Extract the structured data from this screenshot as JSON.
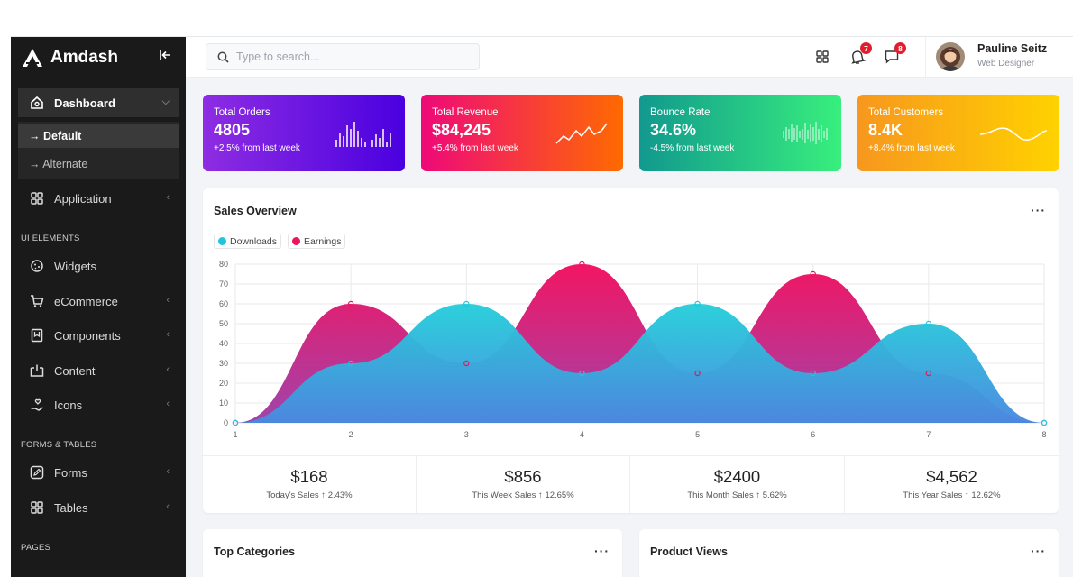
{
  "app": {
    "name": "Amdash"
  },
  "sidebar": {
    "collapse_icon": "collapse-left-icon",
    "dashboard": {
      "label": "Dashboard",
      "icon": "home-icon"
    },
    "dashboard_sub": [
      {
        "label": "→ Default"
      },
      {
        "label": "→ Alternate"
      }
    ],
    "application": {
      "label": "Application",
      "icon": "grid-icon"
    },
    "sections": {
      "ui": "UI ELEMENTS",
      "forms": "FORMS & TABLES",
      "pages": "PAGES"
    },
    "ui_items": [
      {
        "label": "Widgets",
        "icon": "cookie-icon"
      },
      {
        "label": "eCommerce",
        "icon": "cart-icon"
      },
      {
        "label": "Components",
        "icon": "bookmark-icon"
      },
      {
        "label": "Content",
        "icon": "inbox-icon"
      },
      {
        "label": "Icons",
        "icon": "hand-heart-icon"
      }
    ],
    "form_items": [
      {
        "label": "Forms",
        "icon": "edit-icon"
      },
      {
        "label": "Tables",
        "icon": "grid-icon"
      }
    ]
  },
  "topbar": {
    "search_placeholder": "Type to search...",
    "notifications_count": "7",
    "messages_count": "8",
    "user": {
      "name": "Pauline Seitz",
      "role": "Web Designer"
    }
  },
  "stats": [
    {
      "label": "Total Orders",
      "value": "4805",
      "change": "+2.5% from last week",
      "gradient": [
        "#8e2de2",
        "#4a00e0"
      ]
    },
    {
      "label": "Total Revenue",
      "value": "$84,245",
      "change": "+5.4% from last week",
      "gradient": [
        "#ee0979",
        "#ff6a00"
      ]
    },
    {
      "label": "Bounce Rate",
      "value": "34.6%",
      "change": "-4.5% from last week",
      "gradient": [
        "#11998e",
        "#38ef7d"
      ]
    },
    {
      "label": "Total Customers",
      "value": "8.4K",
      "change": "+8.4% from last week",
      "gradient": [
        "#f7971e",
        "#ffd200"
      ]
    }
  ],
  "sales_overview": {
    "title": "Sales Overview",
    "legend": [
      "Downloads",
      "Earnings"
    ],
    "summary": [
      {
        "value": "$168",
        "label": "Today's Sales ↑ 2.43%"
      },
      {
        "value": "$856",
        "label": "This Week Sales ↑ 12.65%"
      },
      {
        "value": "$2400",
        "label": "This Month Sales ↑ 5.62%"
      },
      {
        "value": "$4,562",
        "label": "This Year Sales ↑ 12.62%"
      }
    ]
  },
  "bottom_cards": {
    "left_title": "Top Categories",
    "right_title": "Product Views"
  },
  "chart_data": {
    "type": "area",
    "x": [
      1,
      2,
      3,
      4,
      5,
      6,
      7,
      8
    ],
    "series": [
      {
        "name": "Earnings",
        "values": [
          0,
          60,
          30,
          80,
          25,
          75,
          25,
          0
        ],
        "color": "#e8175d"
      },
      {
        "name": "Downloads",
        "values": [
          0,
          30,
          60,
          25,
          60,
          25,
          50,
          0
        ],
        "color": "#22c5dc"
      }
    ],
    "ylim": [
      0,
      80
    ],
    "yticks": [
      0,
      10,
      20,
      30,
      40,
      50,
      60,
      70,
      80
    ],
    "grid": true
  }
}
